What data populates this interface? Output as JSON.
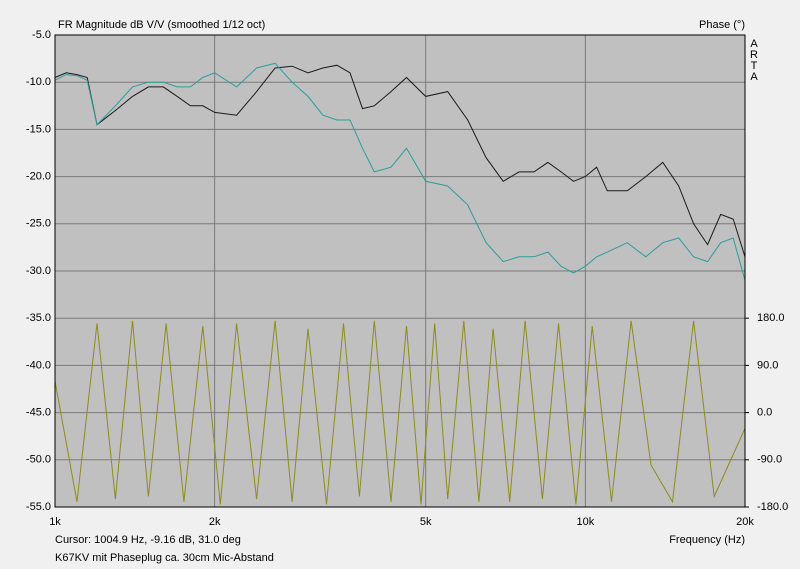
{
  "chart_data": {
    "type": "line",
    "title": "FR Magnitude dB V/V (smoothed 1/12 oct)",
    "y2_label": "Phase (°)",
    "brand": "ARTA",
    "xlabel": "Frequency (Hz)",
    "cursor": "Cursor: 1004.9 Hz, -9.16 dB, 31.0 deg",
    "caption": "K67KV mit Phaseplug ca. 30cm Mic-Abstand",
    "xscale": "log",
    "grid": true,
    "background": "#c0c0c0",
    "xlim": [
      1000,
      20000
    ],
    "xticks": [
      {
        "value": 1000,
        "label": "1k"
      },
      {
        "value": 2000,
        "label": "2k"
      },
      {
        "value": 5000,
        "label": "5k"
      },
      {
        "value": 10000,
        "label": "10k"
      },
      {
        "value": 20000,
        "label": "20k"
      }
    ],
    "ylim": [
      -55,
      -5
    ],
    "yticks": [
      {
        "value": -5,
        "label": "-5.0"
      },
      {
        "value": -10,
        "label": "-10.0"
      },
      {
        "value": -15,
        "label": "-15.0"
      },
      {
        "value": -20,
        "label": "-20.0"
      },
      {
        "value": -25,
        "label": "-25.0"
      },
      {
        "value": -30,
        "label": "-30.0"
      },
      {
        "value": -35,
        "label": "-35.0"
      },
      {
        "value": -40,
        "label": "-40.0"
      },
      {
        "value": -45,
        "label": "-45.0"
      },
      {
        "value": -50,
        "label": "-50.0"
      },
      {
        "value": -55,
        "label": "-55.0"
      }
    ],
    "y2lim": [
      -180,
      720
    ],
    "y2ticks": [
      {
        "value": 180,
        "label": "180.0"
      },
      {
        "value": 90,
        "label": "90.0"
      },
      {
        "value": 0,
        "label": "0.0"
      },
      {
        "value": -90,
        "label": "-90.0"
      },
      {
        "value": -180,
        "label": "-180.0"
      }
    ],
    "x": [
      1000,
      1050,
      1100,
      1150,
      1200,
      1300,
      1400,
      1500,
      1600,
      1700,
      1800,
      1900,
      2000,
      2200,
      2400,
      2600,
      2800,
      3000,
      3200,
      3400,
      3600,
      3800,
      4000,
      4300,
      4600,
      5000,
      5500,
      6000,
      6500,
      7000,
      7500,
      8000,
      8500,
      9000,
      9500,
      10000,
      10500,
      11000,
      12000,
      13000,
      14000,
      15000,
      16000,
      17000,
      18000,
      19000,
      20000
    ],
    "series": [
      {
        "color": "#1a1a1a",
        "values": [
          -9.5,
          -9,
          -9.2,
          -9.5,
          -14.5,
          -13,
          -11.5,
          -10.5,
          -10.5,
          -11.5,
          -12.5,
          -12.5,
          -13.2,
          -13.5,
          -11,
          -8.5,
          -8.3,
          -9,
          -8.5,
          -8.2,
          -9,
          -12.8,
          -12.5,
          -11,
          -9.5,
          -11.5,
          -11,
          -14,
          -18,
          -20.5,
          -19.5,
          -19.5,
          -18.5,
          -19.5,
          -20.5,
          -20,
          -19,
          -21.5,
          -21.5,
          -20,
          -18.5,
          -21,
          -25,
          -27.2,
          -24,
          -24.5,
          -28.5
        ]
      },
      {
        "color": "#2a9d9d",
        "values": [
          -9.8,
          -9.2,
          -9.3,
          -9.8,
          -14.5,
          -12.5,
          -10.5,
          -10,
          -10,
          -10.5,
          -10.5,
          -9.5,
          -9,
          -10.5,
          -8.5,
          -8,
          -10,
          -11.5,
          -13.5,
          -14,
          -14,
          -17,
          -19.5,
          -19,
          -17,
          -20.5,
          -21,
          -23,
          -27,
          -29,
          -28.5,
          -28.5,
          -28,
          -29.5,
          -30.2,
          -29.5,
          -28.5,
          -28,
          -27,
          -28.5,
          -27,
          -26.5,
          -28.5,
          -29,
          -27,
          -26.5,
          -31
        ]
      },
      {
        "color": "#8c8c1e",
        "axis": "y2",
        "x": [
          1000,
          1100,
          1200,
          1300,
          1400,
          1500,
          1620,
          1750,
          1900,
          2050,
          2200,
          2400,
          2600,
          2800,
          3000,
          3250,
          3500,
          3750,
          4000,
          4300,
          4600,
          4900,
          5200,
          5500,
          5900,
          6300,
          6700,
          7200,
          7700,
          8300,
          8900,
          9600,
          10300,
          11200,
          12200,
          13300,
          14600,
          16000,
          17500,
          20000
        ],
        "values": [
          60,
          -170,
          170,
          -165,
          175,
          -160,
          170,
          -170,
          165,
          -175,
          170,
          -165,
          175,
          -170,
          160,
          -175,
          170,
          -160,
          175,
          -170,
          165,
          -175,
          170,
          -165,
          175,
          -170,
          160,
          -170,
          175,
          -165,
          170,
          -175,
          165,
          -170,
          175,
          -100,
          -170,
          175,
          -160,
          -30
        ]
      }
    ]
  }
}
